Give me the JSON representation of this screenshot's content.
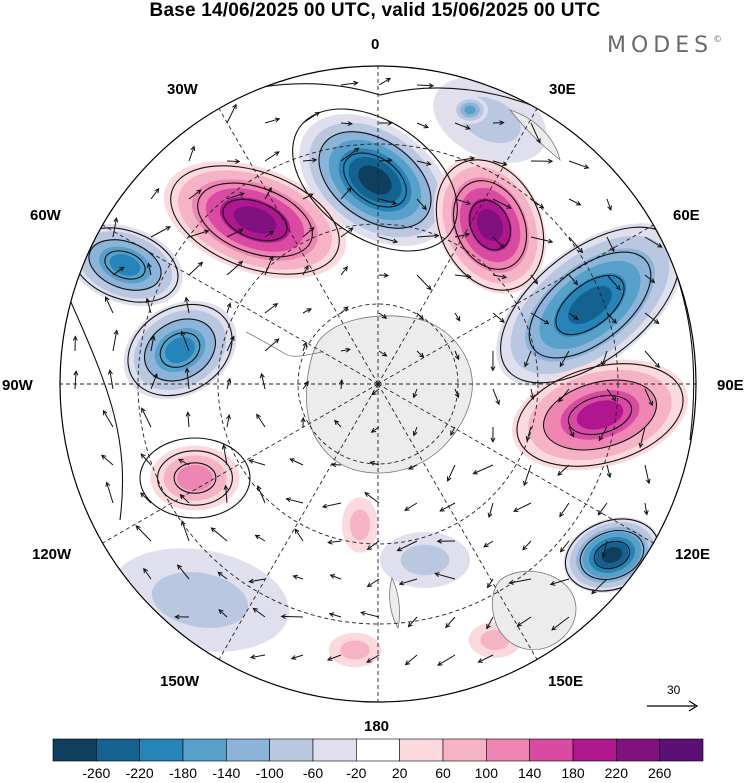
{
  "title": "Base 14/06/2025 00 UTC, valid 15/06/2025 00 UTC",
  "brand": {
    "name": "MODES",
    "mark": "©"
  },
  "longitude_labels": {
    "lon_0": "0",
    "lon_30E": "30E",
    "lon_60E": "60E",
    "lon_90E": "90E",
    "lon_120E": "120E",
    "lon_150E": "150E",
    "lon_180": "180",
    "lon_150W": "150W",
    "lon_120W": "120W",
    "lon_90W": "90W",
    "lon_60W": "60W",
    "lon_30W": "30W"
  },
  "vector_reference": {
    "label": "30"
  },
  "colorbar": {
    "tick_labels": [
      "-260",
      "-220",
      "-180",
      "-140",
      "-100",
      "-60",
      "-20",
      "20",
      "60",
      "100",
      "140",
      "180",
      "220",
      "260"
    ],
    "colors": [
      "#0e3f5f",
      "#13628f",
      "#2584b8",
      "#56a0c9",
      "#8bb4d8",
      "#bac7e1",
      "#dfdfee",
      "#ffffff",
      "#fbd9dc",
      "#f6b3c5",
      "#ee85b3",
      "#d94aa3",
      "#b0168e",
      "#81117f",
      "#5c0f74"
    ]
  },
  "map_colors": {
    "land": "#ececec",
    "coast": "#777777",
    "grid": "#222222",
    "contour": "#111111",
    "arrow": "#111111"
  }
}
